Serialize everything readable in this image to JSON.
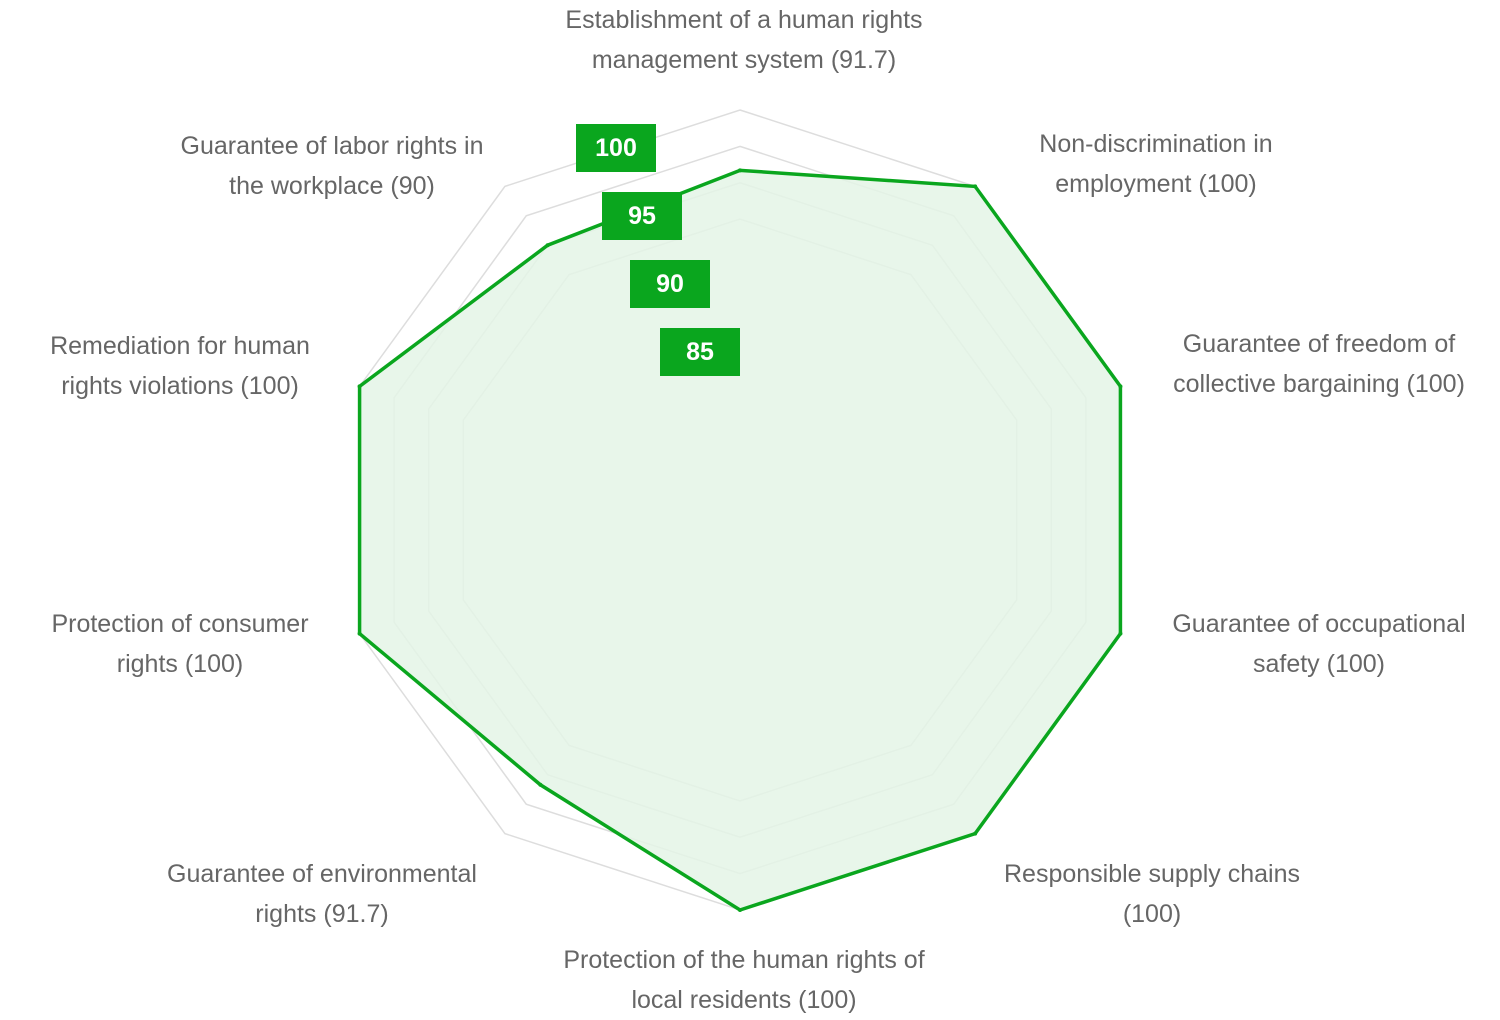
{
  "chart_data": {
    "type": "radar",
    "axes": [
      {
        "label_lines": [
          "Establishment of a human rights",
          "management system (91.7)"
        ],
        "value": 91.7
      },
      {
        "label_lines": [
          "Non-discrimination in",
          "employment (100)"
        ],
        "value": 100
      },
      {
        "label_lines": [
          "Guarantee of freedom of",
          "collective bargaining (100)"
        ],
        "value": 100
      },
      {
        "label_lines": [
          "Guarantee of occupational",
          "safety (100)"
        ],
        "value": 100
      },
      {
        "label_lines": [
          "Responsible supply chains",
          "(100)"
        ],
        "value": 100
      },
      {
        "label_lines": [
          "Protection of the human rights of",
          "local residents (100)"
        ],
        "value": 100
      },
      {
        "label_lines": [
          "Guarantee of environmental",
          "rights (91.7)"
        ],
        "value": 91.7
      },
      {
        "label_lines": [
          "Protection of consumer",
          "rights (100)"
        ],
        "value": 100
      },
      {
        "label_lines": [
          "Remediation for human",
          "rights violations (100)"
        ],
        "value": 100
      },
      {
        "label_lines": [
          "Guarantee of labor rights in",
          "the workplace (90)"
        ],
        "value": 90
      }
    ],
    "r_ticks": [
      "100",
      "95",
      "90",
      "85"
    ],
    "r_range": [
      85,
      100
    ],
    "grid": true,
    "colors": {
      "line": "#0aa61e",
      "fill": "#e4f5e6",
      "grid": "#dddddd",
      "tick_bg": "#0aa61e",
      "label": "#666666"
    }
  }
}
